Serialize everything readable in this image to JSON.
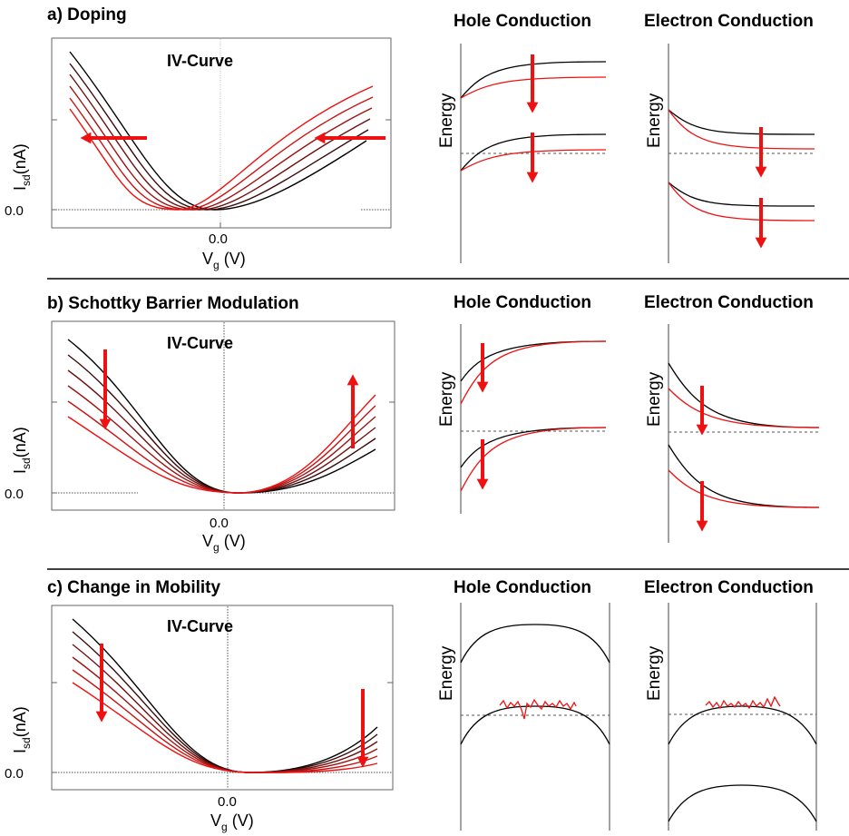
{
  "panels": [
    {
      "title": "a) Doping",
      "plot_title": "IV-Curve",
      "ylabel": "I",
      "ylabel_sub": "sd",
      "ylabel_unit": "(nA)",
      "xlabel": "V",
      "xlabel_sub": "g",
      "xlabel_unit": "(V)",
      "xtick": "0.0",
      "ytick": "0.0",
      "hole_title": "Hole Conduction",
      "electron_title": "Electron Conduction",
      "energy_label": "Energy"
    },
    {
      "title": "b) Schottky Barrier Modulation",
      "plot_title": "IV-Curve",
      "ylabel": "I",
      "ylabel_sub": "sd",
      "ylabel_unit": "(nA)",
      "xlabel": "V",
      "xlabel_sub": "g",
      "xlabel_unit": "(V)",
      "xtick": "0.0",
      "ytick": "0.0",
      "hole_title": "Hole Conduction",
      "electron_title": "Electron Conduction",
      "energy_label": "Energy"
    },
    {
      "title": "c) Change in Mobility",
      "plot_title": "IV-Curve",
      "ylabel": "I",
      "ylabel_sub": "sd",
      "ylabel_unit": "(nA)",
      "xlabel": "V",
      "xlabel_sub": "g",
      "xlabel_unit": "(V)",
      "xtick": "0.0",
      "ytick": "0.0",
      "hole_title": "Hole Conduction",
      "electron_title": "Electron Conduction",
      "energy_label": "Energy"
    }
  ],
  "colors": {
    "black": "#000000",
    "red": "#ee1111",
    "gradient": [
      "#000000",
      "#3a0a0a",
      "#6e1010",
      "#9e1212",
      "#c81313",
      "#ee1111"
    ],
    "divider": "#000000",
    "frame": "#666666",
    "dotted": "#555555"
  },
  "icons": [
    "red-arrow-icon"
  ]
}
